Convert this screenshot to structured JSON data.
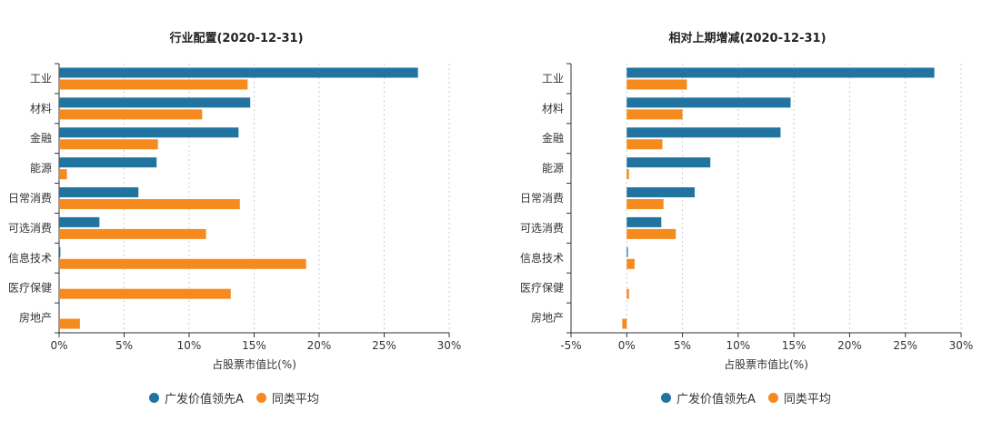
{
  "colors": {
    "fund": "#21749f",
    "peer": "#f58a1f",
    "grid": "#cccccc",
    "axis": "#333333"
  },
  "legend": {
    "fund": "广发价值领先A",
    "peer": "同类平均"
  },
  "chart_data": [
    {
      "type": "bar",
      "orientation": "horizontal",
      "title": "行业配置(2020-12-31)",
      "xlabel": "占股票市值比(%)",
      "categories": [
        "工业",
        "材料",
        "金融",
        "能源",
        "日常消费",
        "可选消费",
        "信息技术",
        "医疗保健",
        "房地产"
      ],
      "xlim": [
        0,
        30
      ],
      "ticks": [
        "0%",
        "5%",
        "10%",
        "15%",
        "20%",
        "25%",
        "30%"
      ],
      "tick_values": [
        0,
        5,
        10,
        15,
        20,
        25,
        30
      ],
      "grid": true,
      "legend_position": "bottom",
      "series": [
        {
          "name": "广发价值领先A",
          "values": [
            27.6,
            14.7,
            13.8,
            7.5,
            6.1,
            3.1,
            0.1,
            0,
            0
          ]
        },
        {
          "name": "同类平均",
          "values": [
            14.5,
            11.0,
            7.6,
            0.6,
            13.9,
            11.3,
            19.0,
            13.2,
            1.6
          ]
        }
      ]
    },
    {
      "type": "bar",
      "orientation": "horizontal",
      "title": "相对上期增减(2020-12-31)",
      "xlabel": "占股票市值比(%)",
      "categories": [
        "工业",
        "材料",
        "金融",
        "能源",
        "日常消费",
        "可选消费",
        "信息技术",
        "医疗保健",
        "房地产"
      ],
      "xlim": [
        -5,
        30
      ],
      "ticks": [
        "-5%",
        "0%",
        "5%",
        "10%",
        "15%",
        "20%",
        "25%",
        "30%"
      ],
      "tick_values": [
        -5,
        0,
        5,
        10,
        15,
        20,
        25,
        30
      ],
      "grid": true,
      "legend_position": "bottom",
      "series": [
        {
          "name": "广发价值领先A",
          "values": [
            27.6,
            14.7,
            13.8,
            7.5,
            6.1,
            3.1,
            0.1,
            0,
            0
          ]
        },
        {
          "name": "同类平均",
          "values": [
            5.4,
            5.0,
            3.2,
            0.2,
            3.3,
            4.4,
            0.7,
            0.2,
            -0.4
          ]
        }
      ]
    }
  ]
}
